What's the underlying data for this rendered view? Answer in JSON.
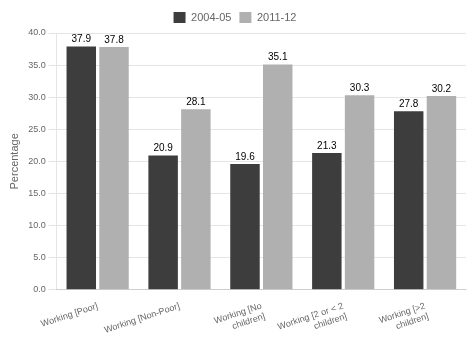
{
  "chart_data": {
    "type": "bar",
    "categories": [
      "Working [Poor]",
      "Working [Non-Poor]",
      "Working [No\nchildren]",
      "Working [2 or < 2\nchildren]",
      "Working [>2\nchildren]"
    ],
    "series": [
      {
        "name": "2004-05",
        "color": "#3d3d3d",
        "values": [
          37.9,
          20.9,
          19.6,
          21.3,
          27.8
        ]
      },
      {
        "name": "2011-12",
        "color": "#b0b0b0",
        "values": [
          37.8,
          28.1,
          35.1,
          30.3,
          30.2
        ]
      }
    ],
    "y_label": "Percentage",
    "ylim": [
      0,
      40
    ],
    "yticks": [
      {
        "value": 0,
        "label": "0.0"
      },
      {
        "value": 5,
        "label": "5.0"
      },
      {
        "value": 10,
        "label": "10.0"
      },
      {
        "value": 15,
        "label": "15.0"
      },
      {
        "value": 20,
        "label": "20.0"
      },
      {
        "value": 25,
        "label": "25.0"
      },
      {
        "value": 30,
        "label": "30.0"
      },
      {
        "value": 35,
        "label": "35.0"
      },
      {
        "value": 40,
        "label": "40.0"
      }
    ],
    "grid": true,
    "legend": "top",
    "data_labels": true
  }
}
